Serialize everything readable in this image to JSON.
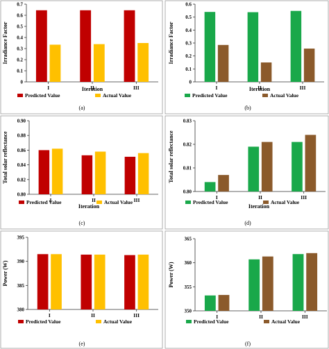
{
  "chart_data": [
    {
      "id": "a",
      "type": "bar",
      "panel_label": "(a)",
      "xlabel": "Iteration",
      "ylabel": "Irradiance Factor",
      "categories": [
        "I",
        "II",
        "III"
      ],
      "ylim": [
        0,
        0.7
      ],
      "yticks": [
        "0",
        "0.1",
        "0.2",
        "0.3",
        "0.4",
        "0.5",
        "0.6",
        "0.7"
      ],
      "grid": false,
      "legend_placement": "bottom",
      "series": [
        {
          "name": "Predicted Value",
          "color": "#c00000",
          "values": [
            0.645,
            0.645,
            0.645
          ]
        },
        {
          "name": "Actual Value",
          "color": "#ffc000",
          "values": [
            0.335,
            0.34,
            0.35
          ]
        }
      ]
    },
    {
      "id": "b",
      "type": "bar",
      "panel_label": "(b)",
      "xlabel": "Iteration",
      "ylabel": "Irradiance Factor",
      "categories": [
        "I",
        "II",
        "III"
      ],
      "ylim": [
        0,
        0.6
      ],
      "yticks": [
        "0",
        "0.1",
        "0.2",
        "0.3",
        "0.4",
        "0.5",
        "0.6"
      ],
      "grid": false,
      "legend_placement": "bottom",
      "series": [
        {
          "name": "Predicted Value",
          "color": "#19a84a",
          "values": [
            0.54,
            0.538,
            0.548
          ]
        },
        {
          "name": "Actual Value",
          "color": "#8b5a2b",
          "values": [
            0.285,
            0.15,
            0.257
          ]
        }
      ]
    },
    {
      "id": "c",
      "type": "bar",
      "panel_label": "(c)",
      "xlabel": "Iteration",
      "ylabel": "Total solar reflectance",
      "categories": [
        "I",
        "II",
        "III"
      ],
      "ylim": [
        0.8,
        0.9
      ],
      "yticks": [
        "0.80",
        "0.82",
        "0.84",
        "0.86",
        "0.88",
        "0.90"
      ],
      "grid": false,
      "legend_placement": "bottom",
      "series": [
        {
          "name": "Predicted Value",
          "color": "#c00000",
          "values": [
            0.86,
            0.853,
            0.851
          ]
        },
        {
          "name": "Actual Value",
          "color": "#ffc000",
          "values": [
            0.862,
            0.858,
            0.856
          ]
        }
      ]
    },
    {
      "id": "d",
      "type": "bar",
      "panel_label": "(d)",
      "xlabel": "Iteration",
      "ylabel": "Total solar reflectance",
      "categories": [
        "I",
        "II",
        "III"
      ],
      "ylim": [
        0.8,
        0.83
      ],
      "yticks": [
        "0.80",
        "0.81",
        "0.82",
        "0.83"
      ],
      "grid": false,
      "legend_placement": "bottom",
      "series": [
        {
          "name": "Predicted Value",
          "color": "#19a84a",
          "values": [
            0.804,
            0.819,
            0.821
          ]
        },
        {
          "name": "Actual Value",
          "color": "#8b5a2b",
          "values": [
            0.807,
            0.821,
            0.824
          ]
        }
      ]
    },
    {
      "id": "e",
      "type": "bar",
      "panel_label": "(e)",
      "xlabel": "",
      "ylabel": "Power (W)",
      "categories": [
        "I",
        "II",
        "III"
      ],
      "ylim": [
        380,
        395
      ],
      "yticks": [
        "380",
        "385",
        "390",
        "395"
      ],
      "grid": false,
      "legend_placement": "bottom",
      "series": [
        {
          "name": "Predicted Value",
          "color": "#c00000",
          "values": [
            391.5,
            391.4,
            391.3
          ]
        },
        {
          "name": "Actual Value",
          "color": "#ffc000",
          "values": [
            391.5,
            391.4,
            391.4
          ]
        }
      ]
    },
    {
      "id": "f",
      "type": "bar",
      "panel_label": "(f)",
      "xlabel": "",
      "ylabel": "Power (W)",
      "categories": [
        "I",
        "II",
        "III"
      ],
      "ylim": [
        350,
        365
      ],
      "yticks": [
        "350",
        "355",
        "360",
        "365"
      ],
      "grid": false,
      "legend_placement": "bottom",
      "series": [
        {
          "name": "Predicted Value",
          "color": "#19a84a",
          "values": [
            353.2,
            360.7,
            361.8
          ]
        },
        {
          "name": "Actual Value",
          "color": "#8b5a2b",
          "values": [
            353.3,
            361.3,
            362.0
          ]
        }
      ]
    }
  ]
}
